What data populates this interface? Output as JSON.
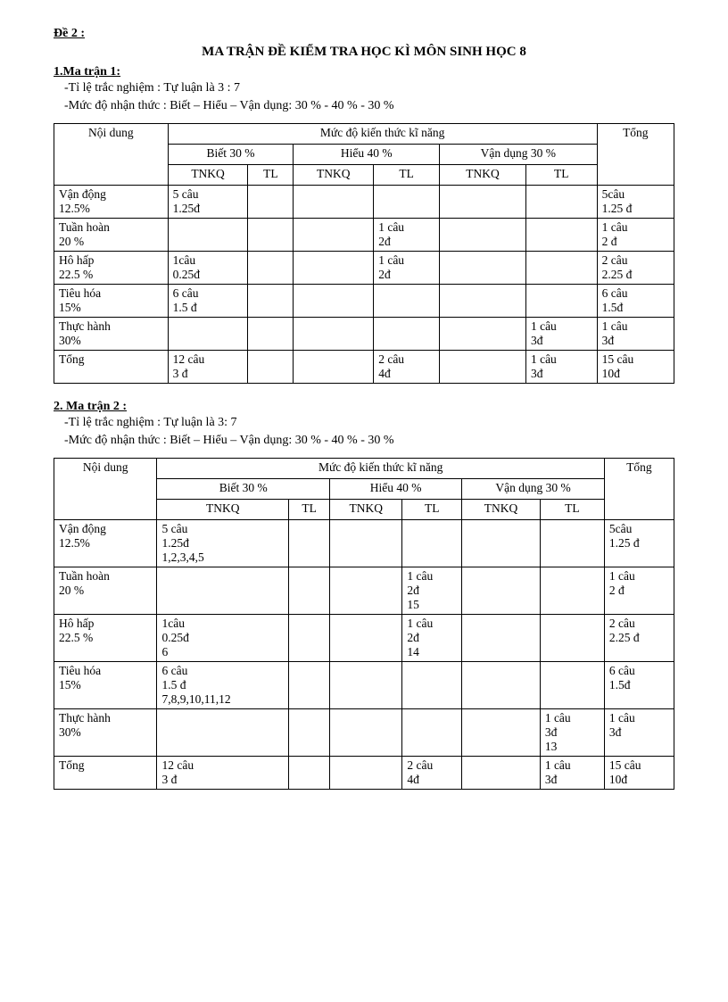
{
  "de_label": "Đề 2 :",
  "main_title": "MA TRẬN ĐỀ KIỂM TRA HỌC KÌ MÔN SINH HỌC 8",
  "matran1": {
    "label": "1.Ma trận 1:",
    "note1": "-Tỉ lệ trắc nghiệm  : Tự luận  là 3 : 7",
    "note2": "-Mức độ nhận thức : Biết – Hiểu – Vận dụng:  30 % - 40 % - 30 %",
    "header": {
      "noidung": "Nội dung",
      "mucdo": "Mức độ kiến thức kĩ năng",
      "biet": "Biết 30 %",
      "hieu": "Hiểu 40 %",
      "vandung": "Vận dụng 30 %",
      "tong": "Tổng",
      "tnkq": "TNKQ",
      "tl": "TL"
    },
    "rows": [
      {
        "label": "Vận động\n     12.5%",
        "c1": "5 câu\n      1.25đ",
        "c2": "",
        "c3": "",
        "c4": "",
        "c5": "",
        "c6": "",
        "tong": "5câu\n       1.25 đ"
      },
      {
        "label": "Tuần hoàn\n     20 %",
        "c1": "",
        "c2": "",
        "c3": "",
        "c4": "1 câu\n           2đ",
        "c5": "",
        "c6": "",
        "tong": "1 câu\n       2 đ"
      },
      {
        "label": "Hô hấp\n    22.5 %",
        "c1": "1câu\n      0.25đ",
        "c2": "",
        "c3": "",
        "c4": "1 câu\n           2đ",
        "c5": "",
        "c6": "",
        "tong": "2 câu\n      2.25 đ"
      },
      {
        "label": "Tiêu hóa\n     15%",
        "c1": "6 câu\n     1.5 đ",
        "c2": "",
        "c3": "",
        "c4": "",
        "c5": "",
        "c6": "",
        "tong": "6 câu\n       1.5đ"
      },
      {
        "label": "Thực hành\n       30%",
        "c1": "",
        "c2": "",
        "c3": "",
        "c4": "",
        "c5": "",
        "c6": "1 câu\n           3đ",
        "tong": "1 câu\n         3đ"
      },
      {
        "label": "  Tổng",
        "c1": "12 câu\n       3 đ",
        "c2": "",
        "c3": "",
        "c4": "2 câu\n          4đ",
        "c5": "",
        "c6": "1 câu\n          3đ",
        "tong": "15 câu\n       10đ"
      }
    ]
  },
  "matran2": {
    "label": "2. Ma trận 2 :",
    "note1": "-Tỉ lệ trắc nghiệm  : Tự luận  là 3: 7",
    "note2": "-Mức độ nhận thức : Biết – Hiểu – Vận dụng:  30 % - 40 % - 30 %",
    "header": {
      "noidung": "Nội dung",
      "mucdo": "Mức độ kiến thức kĩ năng",
      "biet": "Biết 30 %",
      "hieu": "Hiểu 40 %",
      "vandung": "Vận dụng 30 %",
      "tong": "Tổng",
      "tnkq": "TNKQ",
      "tl": "TL"
    },
    "rows": [
      {
        "label": "Vận động\n     12.5%",
        "c1": "5 câu\n    1.25đ\n1,2,3,4,5",
        "c2": "",
        "c3": "",
        "c4": "",
        "c5": "",
        "c6": "",
        "tong": "5câu\n       1.25 đ"
      },
      {
        "label": "Tuần hoàn\n     20 %",
        "c1": "",
        "c2": "",
        "c3": "",
        "c4": "1 câu\n           2đ\n15",
        "c5": "",
        "c6": "",
        "tong": "1 câu\n       2 đ"
      },
      {
        "label": "Hô hấp\n    22.5 %",
        "c1": "1câu\n      0.25đ\n6",
        "c2": "",
        "c3": "",
        "c4": "1 câu\n           2đ\n14",
        "c5": "",
        "c6": "",
        "tong": "2 câu\n      2.25 đ"
      },
      {
        "label": "Tiêu hóa\n     15%",
        "c1": "6 câu\n     1.5 đ\n7,8,9,10,11,12",
        "c2": "",
        "c3": "",
        "c4": "",
        "c5": "",
        "c6": "",
        "tong": "6 câu\n       1.5đ"
      },
      {
        "label": "Thực hành\n       30%",
        "c1": "",
        "c2": "",
        "c3": "",
        "c4": "",
        "c5": "",
        "c6": "1 câu\n           3đ\n13",
        "tong": "1 câu\n         3đ"
      },
      {
        "label": "  Tổng",
        "c1": "12 câu\n       3 đ",
        "c2": "",
        "c3": "",
        "c4": "2 câu\n          4đ",
        "c5": "",
        "c6": "1 câu\n          3đ",
        "tong": "15 câu\n       10đ"
      }
    ]
  }
}
